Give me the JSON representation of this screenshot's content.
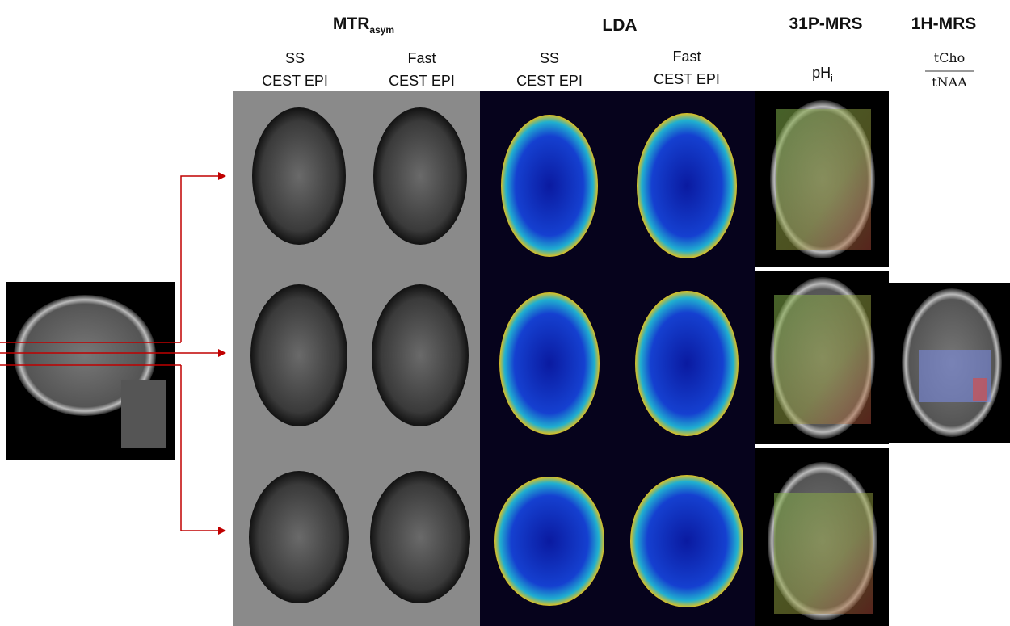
{
  "columns": [
    {
      "title": "MTR",
      "title_sub": "asym"
    },
    {
      "title": "LDA"
    },
    {
      "title": "31P-MRS"
    },
    {
      "title": "1H-MRS"
    }
  ],
  "subheaders": [
    {
      "lines": [
        "SS",
        "CEST EPI"
      ]
    },
    {
      "lines": [
        "Fast",
        "CEST EPI"
      ]
    },
    {
      "lines": [
        "SS",
        "CEST EPI"
      ]
    },
    {
      "lines": [
        "Fast",
        "CEST EPI"
      ]
    },
    {
      "label": "pH",
      "sub": "i"
    },
    {
      "numerator": "tCho",
      "denominator": "tNAA"
    }
  ]
}
